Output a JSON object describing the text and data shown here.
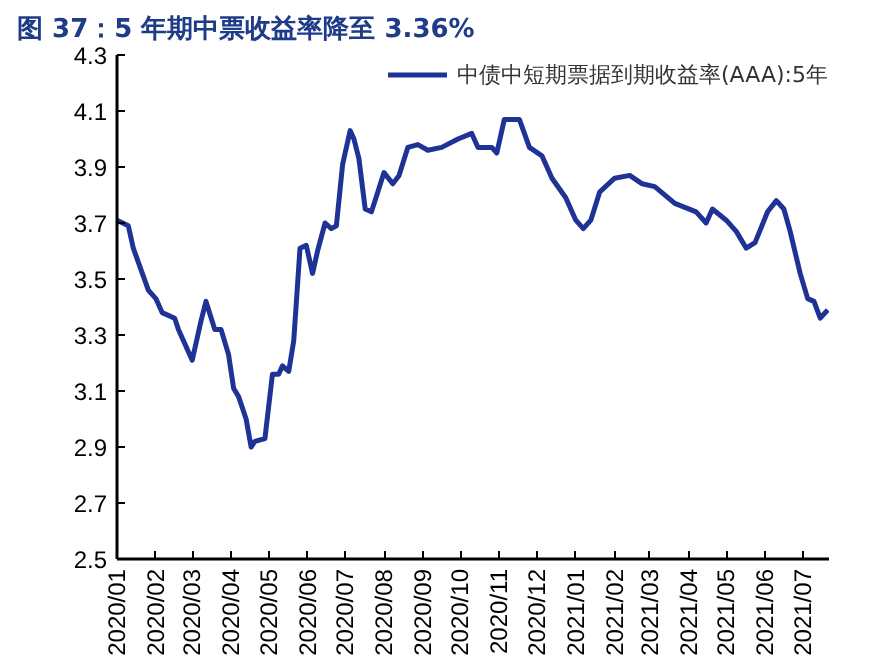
{
  "chart_data": {
    "type": "line",
    "title": "图 37：5 年期中票收益率降至 3.36%",
    "x": [
      "2020-01-01",
      "2020-01-10",
      "2020-01-14",
      "2020-01-26",
      "2020-02-01",
      "2020-02-06",
      "2020-02-16",
      "2020-02-19",
      "2020-03-01",
      "2020-03-08",
      "2020-03-12",
      "2020-03-19",
      "2020-03-24",
      "2020-03-30",
      "2020-04-03",
      "2020-04-07",
      "2020-04-13",
      "2020-04-17",
      "2020-04-20",
      "2020-04-28",
      "2020-05-04",
      "2020-05-09",
      "2020-05-12",
      "2020-05-17",
      "2020-05-21",
      "2020-05-26",
      "2020-05-31",
      "2020-06-05",
      "2020-06-09",
      "2020-06-15",
      "2020-06-20",
      "2020-06-24",
      "2020-06-29",
      "2020-07-05",
      "2020-07-08",
      "2020-07-12",
      "2020-07-17",
      "2020-07-22",
      "2020-07-27",
      "2020-08-01",
      "2020-08-08",
      "2020-08-13",
      "2020-08-20",
      "2020-08-28",
      "2020-09-05",
      "2020-09-16",
      "2020-09-29",
      "2020-10-10",
      "2020-10-15",
      "2020-10-26",
      "2020-10-30",
      "2020-11-05",
      "2020-11-17",
      "2020-11-25",
      "2020-12-05",
      "2020-12-13",
      "2020-12-24",
      "2021-01-01",
      "2021-01-07",
      "2021-01-13",
      "2021-01-20",
      "2021-02-01",
      "2021-02-13",
      "2021-02-23",
      "2021-03-05",
      "2021-03-21",
      "2021-04-07",
      "2021-04-15",
      "2021-04-20",
      "2021-05-01",
      "2021-05-09",
      "2021-05-17",
      "2021-05-24",
      "2021-06-03",
      "2021-06-10",
      "2021-06-16",
      "2021-06-21",
      "2021-06-29",
      "2021-07-05",
      "2021-07-10",
      "2021-07-15",
      "2021-07-21"
    ],
    "series": [
      {
        "name": "中债中短期票据到期收益率(AAA):5年",
        "color": "#1f3296",
        "values": [
          3.71,
          3.69,
          3.61,
          3.46,
          3.43,
          3.38,
          3.36,
          3.32,
          3.21,
          3.35,
          3.42,
          3.32,
          3.32,
          3.23,
          3.11,
          3.08,
          3.0,
          2.9,
          2.92,
          2.93,
          3.16,
          3.16,
          3.19,
          3.17,
          3.28,
          3.61,
          3.62,
          3.52,
          3.6,
          3.7,
          3.68,
          3.69,
          3.91,
          4.03,
          4.0,
          3.93,
          3.75,
          3.74,
          3.81,
          3.88,
          3.84,
          3.87,
          3.97,
          3.98,
          3.96,
          3.97,
          4.0,
          4.02,
          3.97,
          3.97,
          3.95,
          4.07,
          4.07,
          3.97,
          3.94,
          3.86,
          3.79,
          3.71,
          3.68,
          3.71,
          3.81,
          3.86,
          3.87,
          3.84,
          3.83,
          3.77,
          3.74,
          3.7,
          3.75,
          3.71,
          3.67,
          3.61,
          3.63,
          3.74,
          3.78,
          3.75,
          3.67,
          3.52,
          3.43,
          3.42,
          3.36,
          3.39
        ]
      }
    ],
    "xlim": [
      "2020-01-01",
      "2021-07-22"
    ],
    "xticks": [
      {
        "value": "2020-01-01",
        "label": "2020/01"
      },
      {
        "value": "2020-02-01",
        "label": "2020/02"
      },
      {
        "value": "2020-03-01",
        "label": "2020/03"
      },
      {
        "value": "2020-04-01",
        "label": "2020/04"
      },
      {
        "value": "2020-05-01",
        "label": "2020/05"
      },
      {
        "value": "2020-06-01",
        "label": "2020/06"
      },
      {
        "value": "2020-07-01",
        "label": "2020/07"
      },
      {
        "value": "2020-08-01",
        "label": "2020/08"
      },
      {
        "value": "2020-09-01",
        "label": "2020/09"
      },
      {
        "value": "2020-10-01",
        "label": "2020/10"
      },
      {
        "value": "2020-11-01",
        "label": "2020/11"
      },
      {
        "value": "2020-12-01",
        "label": "2020/12"
      },
      {
        "value": "2021-01-01",
        "label": "2021/01"
      },
      {
        "value": "2021-02-01",
        "label": "2021/02"
      },
      {
        "value": "2021-03-01",
        "label": "2021/03"
      },
      {
        "value": "2021-04-01",
        "label": "2021/04"
      },
      {
        "value": "2021-05-01",
        "label": "2021/05"
      },
      {
        "value": "2021-06-01",
        "label": "2021/06"
      },
      {
        "value": "2021-07-01",
        "label": "2021/07"
      }
    ],
    "ylim": [
      2.5,
      4.3
    ],
    "yticks": [
      {
        "value": 2.5,
        "label": "2.5"
      },
      {
        "value": 2.7,
        "label": "2.7"
      },
      {
        "value": 2.9,
        "label": "2.9"
      },
      {
        "value": 3.1,
        "label": "3.1"
      },
      {
        "value": 3.3,
        "label": "3.3"
      },
      {
        "value": 3.5,
        "label": "3.5"
      },
      {
        "value": 3.7,
        "label": "3.7"
      },
      {
        "value": 3.9,
        "label": "3.9"
      },
      {
        "value": 4.1,
        "label": "4.1"
      },
      {
        "value": 4.3,
        "label": "4.3"
      }
    ],
    "grid": false,
    "legend": "top right",
    "marker": "none",
    "line_style": "solid"
  }
}
